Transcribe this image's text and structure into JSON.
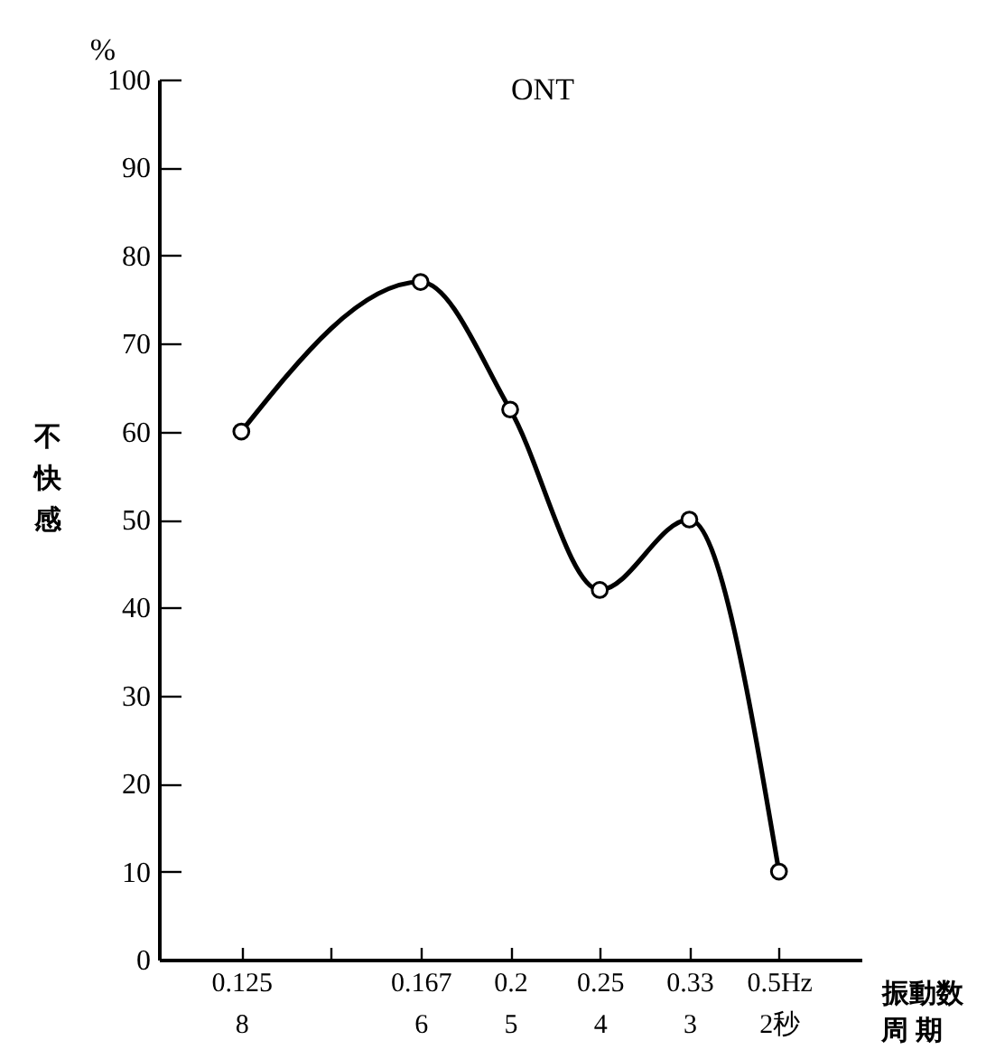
{
  "chart_data": {
    "type": "line",
    "title": "ONT",
    "ylabel": "不快感",
    "xlabel": "振動数",
    "annotations": [
      "%",
      "周 期"
    ],
    "categories": [
      "0.125\n8",
      null,
      "0.167\n6",
      "0.2\n5",
      "0.25\n4",
      "0.33\n3",
      "0.5Hz\n2秒"
    ],
    "series": [
      {
        "color": "#000000",
        "values": [
          60,
          null,
          77,
          62.5,
          42,
          50,
          10
        ]
      }
    ],
    "ylim": [
      0,
      100
    ],
    "yticks": [
      0,
      10,
      20,
      30,
      40,
      50,
      60,
      70,
      80,
      90,
      100
    ],
    "grid": false,
    "legend": false,
    "marker": "circle",
    "line_style": "solid"
  }
}
